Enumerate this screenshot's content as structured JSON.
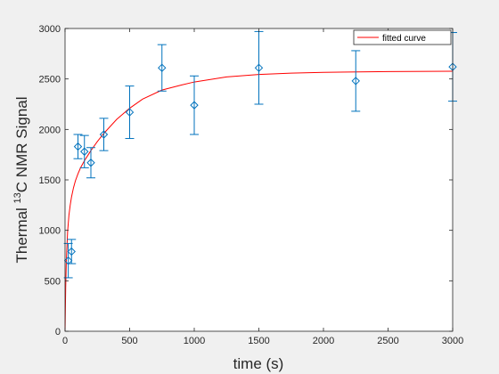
{
  "chart_data": {
    "type": "scatter",
    "title": "",
    "xlabel": "time (s)",
    "ylabel": {
      "prefix": "Thermal ",
      "superscript": "13",
      "suffix": "C NMR Signal"
    },
    "xlim": [
      0,
      3000
    ],
    "ylim": [
      0,
      3000
    ],
    "xticks": [
      0,
      500,
      1000,
      1500,
      2000,
      2500,
      3000
    ],
    "yticks": [
      0,
      500,
      1000,
      1500,
      2000,
      2500,
      3000
    ],
    "grid": false,
    "legend": {
      "placement": "top-right",
      "entries": [
        "fitted curve"
      ]
    },
    "series": [
      {
        "kind": "errorbar",
        "marker": "diamond",
        "color": "#0072bd",
        "x": [
          25,
          50,
          100,
          150,
          200,
          300,
          500,
          750,
          1000,
          1500,
          2250,
          3000
        ],
        "y": [
          700,
          790,
          1830,
          1780,
          1670,
          1950,
          2170,
          2610,
          2240,
          2610,
          2480,
          2620
        ],
        "err": [
          170,
          120,
          120,
          160,
          150,
          160,
          260,
          230,
          290,
          360,
          300,
          340
        ]
      },
      {
        "name": "fitted curve",
        "kind": "line",
        "color": "#ff0000",
        "x": [
          0,
          5,
          10,
          20,
          30,
          40,
          50,
          65,
          80,
          100,
          120,
          150,
          180,
          200,
          250,
          300,
          400,
          500,
          600,
          750,
          900,
          1000,
          1250,
          1500,
          1750,
          2000,
          2500,
          3000
        ],
        "y": [
          0,
          430,
          700,
          990,
          1150,
          1250,
          1330,
          1420,
          1490,
          1560,
          1620,
          1690,
          1750,
          1790,
          1880,
          1960,
          2100,
          2210,
          2300,
          2390,
          2440,
          2470,
          2520,
          2545,
          2558,
          2566,
          2573,
          2577
        ]
      }
    ]
  }
}
